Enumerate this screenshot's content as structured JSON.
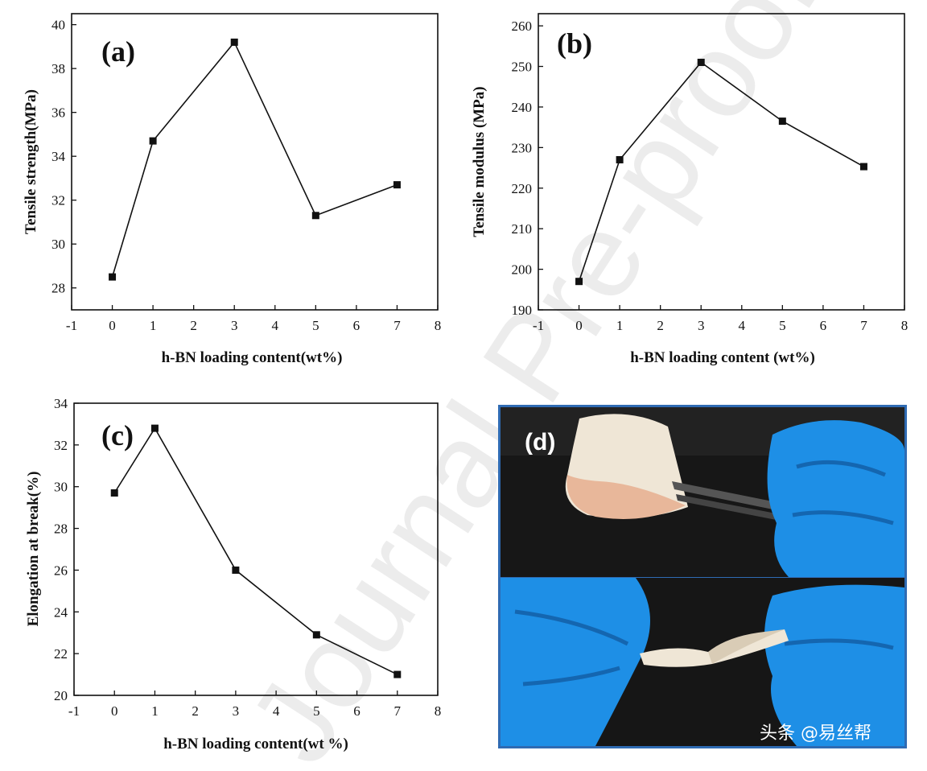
{
  "chart_data": [
    {
      "type": "line",
      "panel_label": "(a)",
      "xlabel": "h-BN loading content(wt%)",
      "ylabel": "Tensile strength(MPa)",
      "xlim": [
        -1,
        8
      ],
      "ylim": [
        27,
        40.5
      ],
      "xticks": [
        -1,
        0,
        1,
        2,
        3,
        4,
        5,
        6,
        7,
        8
      ],
      "yticks": [
        28,
        30,
        32,
        34,
        36,
        38,
        40
      ],
      "x": [
        0,
        1,
        3,
        5,
        7
      ],
      "y": [
        28.5,
        34.7,
        39.2,
        31.3,
        32.7
      ],
      "grid": false
    },
    {
      "type": "line",
      "panel_label": "(b)",
      "xlabel": "h-BN loading content (wt%)",
      "ylabel": "Tensile modulus (MPa)",
      "xlim": [
        -1,
        8
      ],
      "ylim": [
        190,
        263
      ],
      "xticks": [
        -1,
        0,
        1,
        2,
        3,
        4,
        5,
        6,
        7,
        8
      ],
      "yticks": [
        190,
        200,
        210,
        220,
        230,
        240,
        250,
        260
      ],
      "x": [
        0,
        1,
        3,
        5,
        7
      ],
      "y": [
        197,
        227,
        251,
        236.5,
        225.3
      ],
      "grid": false
    },
    {
      "type": "line",
      "panel_label": "(c)",
      "xlabel": "h-BN loading content(wt %)",
      "ylabel": "Elongation at break(%)",
      "xlim": [
        -1,
        8
      ],
      "ylim": [
        20,
        34
      ],
      "xticks": [
        -1,
        0,
        1,
        2,
        3,
        4,
        5,
        6,
        7,
        8
      ],
      "yticks": [
        20,
        22,
        24,
        26,
        28,
        30,
        32,
        34
      ],
      "x": [
        0,
        1,
        3,
        5,
        7
      ],
      "y": [
        29.7,
        32.8,
        26.0,
        22.9,
        21.0
      ],
      "grid": false
    }
  ],
  "photo": {
    "panel_label": "(d)",
    "credit": "头条 @易丝帮"
  },
  "watermark": "Journal Pre-proof",
  "colors": {
    "line": "#111111",
    "photo_border": "#2f6bb3",
    "glove": "#1e8fe6",
    "film": "#efe6d6",
    "background_dark": "#161616"
  }
}
